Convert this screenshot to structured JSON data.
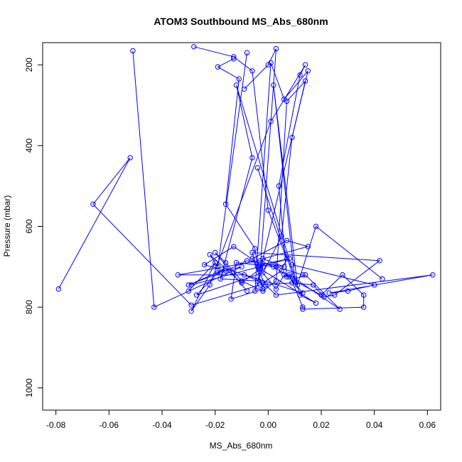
{
  "chart_data": {
    "type": "line",
    "title": "ATOM3 Southbound MS_Abs_680nm",
    "xlabel": "MS_Abs_680nm",
    "ylabel": "Pressure (mbar)",
    "xlim": [
      -0.085,
      0.065
    ],
    "ylim": [
      1055,
      145
    ],
    "y_reversed": true,
    "grid": false,
    "x_ticks": [
      -0.08,
      -0.06,
      -0.04,
      -0.02,
      0.0,
      0.02,
      0.04,
      0.06
    ],
    "x_tick_labels": [
      "-0.08",
      "-0.06",
      "-0.04",
      "-0.02",
      "0.00",
      "0.02",
      "0.04",
      "0.06"
    ],
    "y_ticks": [
      200,
      400,
      600,
      800,
      1000
    ],
    "y_tick_labels": [
      "200",
      "400",
      "600",
      "800",
      "1000"
    ],
    "series_color": "#0000ff",
    "marker": "open-circle",
    "series": [
      {
        "x": [
          -0.013,
          -0.019,
          -0.011,
          -0.016,
          -0.005,
          -0.004,
          0.003,
          0.006,
          0.007,
          0.004,
          0.012,
          0.014,
          0.001,
          -0.022,
          -0.029,
          -0.02,
          -0.03
        ],
        "y": [
          185,
          205,
          235,
          545,
          655,
          700,
          755,
          720,
          725,
          500,
          225,
          200,
          340,
          745,
          810,
          690,
          760
        ]
      },
      {
        "x": [
          -0.028,
          -0.013,
          -0.006,
          0.0,
          0.007,
          0.005,
          -0.002,
          -0.009,
          -0.034,
          -0.003,
          0.002,
          0.008,
          0.013,
          -0.016,
          -0.03,
          -0.018
        ],
        "y": [
          155,
          180,
          215,
          560,
          680,
          710,
          740,
          720,
          720,
          685,
          700,
          725,
          765,
          705,
          745,
          715
        ]
      },
      {
        "x": [
          -0.051,
          -0.043,
          -0.01,
          -0.019,
          -0.027,
          -0.002,
          0.005,
          0.009,
          0.014,
          0.007,
          0.003,
          -0.002,
          -0.01,
          -0.016,
          -0.02,
          -0.008
        ],
        "y": [
          165,
          800,
          700,
          715,
          770,
          715,
          625,
          380,
          240,
          290,
          735,
          760,
          735,
          690,
          665,
          760
        ]
      },
      {
        "x": [
          -0.079,
          -0.052,
          -0.066,
          -0.029,
          -0.003,
          0.009,
          0.017,
          0.021,
          0.025,
          0.042,
          -0.006,
          -0.002,
          -0.014,
          -0.012,
          0.003,
          0.013
        ],
        "y": [
          755,
          430,
          545,
          795,
          745,
          740,
          745,
          775,
          770,
          685,
          665,
          755,
          780,
          690,
          700,
          720
        ]
      },
      {
        "x": [
          -0.004,
          0.01,
          0.02,
          0.028,
          0.036,
          0.036,
          0.013,
          0.013,
          0.008,
          0.027,
          0.014,
          0.01,
          0.002,
          0.011,
          0.018,
          0.043
        ],
        "y": [
          455,
          735,
          770,
          720,
          770,
          800,
          805,
          800,
          720,
          805,
          720,
          730,
          250,
          745,
          600,
          730
        ]
      },
      {
        "x": [
          0.009,
          0.04,
          0.03,
          0.023,
          0.062,
          0.003,
          -0.001,
          -0.006,
          0.007,
          0.015,
          -0.002,
          0.006,
          -0.008,
          -0.016,
          -0.024,
          -0.013,
          -0.003,
          0.008,
          -0.029
        ],
        "y": [
          695,
          745,
          760,
          765,
          720,
          770,
          745,
          680,
          635,
          650,
          680,
          700,
          685,
          710,
          695,
          650,
          695,
          680,
          745
        ]
      },
      {
        "x": [
          -0.008,
          -0.019,
          -0.022,
          -0.01,
          -0.002,
          -0.005,
          0.001,
          0.006,
          0.015,
          -0.004,
          -0.018,
          -0.006,
          -0.012,
          0.012,
          0.018,
          -0.003,
          0.003,
          0.0,
          -0.009
        ],
        "y": [
          170,
          700,
          670,
          740,
          700,
          760,
          195,
          285,
          215,
          735,
          730,
          430,
          250,
          770,
          790,
          705,
          160,
          200,
          260
        ]
      }
    ]
  }
}
